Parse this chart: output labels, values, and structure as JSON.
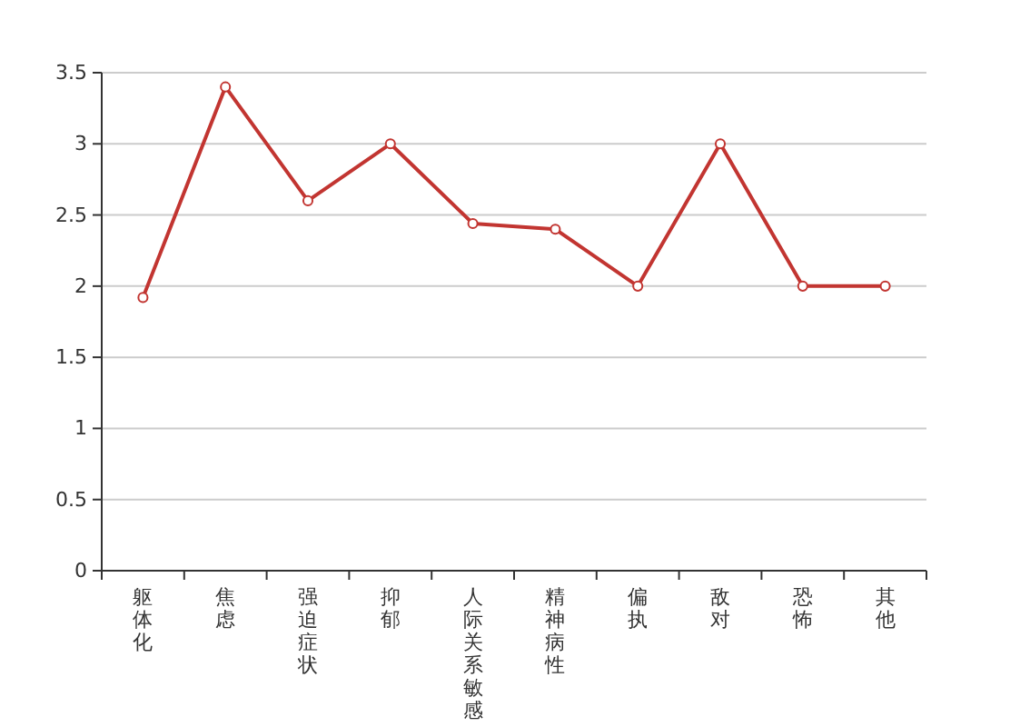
{
  "chart_data": {
    "type": "line",
    "categories": [
      "躯体化",
      "焦虑",
      "强迫症状",
      "抑郁",
      "人际关系敏感",
      "精神病性",
      "偏执",
      "敌对",
      "恐怖",
      "其他"
    ],
    "series": [
      {
        "color": "#c23531",
        "values": [
          1.92,
          3.4,
          2.6,
          3.0,
          2.44,
          2.4,
          2.0,
          3.0,
          2.0,
          2.0
        ]
      }
    ],
    "ylim": [
      0,
      3.5
    ],
    "yticks": [
      0,
      0.5,
      1,
      1.5,
      2,
      2.5,
      3,
      3.5
    ],
    "grid": "y",
    "marker": "circle"
  }
}
